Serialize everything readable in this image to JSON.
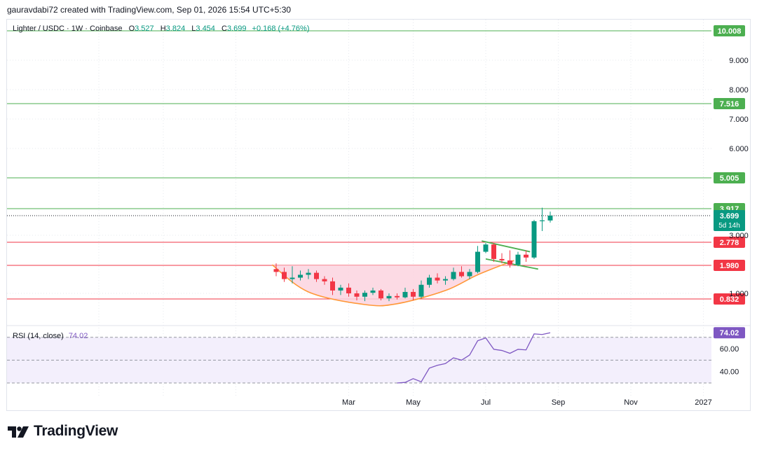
{
  "attribution": "gauravdabi72 created with TradingView.com, Sep 01, 2026 15:54 UTC+5:30",
  "legend": {
    "symbol": "Lighter / USDC · 1W · Coinbase",
    "open_label": "O",
    "open": "3.527",
    "high_label": "H",
    "high": "3.824",
    "low_label": "L",
    "low": "3.454",
    "close_label": "C",
    "close": "3.699",
    "change": "+0.168 (+4.76%)"
  },
  "rsi_legend": {
    "label": "RSI (14, close)",
    "value": "74.02"
  },
  "footer": {
    "brand": "TradingView",
    "logo_icon": "tradingview-logo-icon"
  },
  "colors": {
    "up": "#089981",
    "down": "#f23645",
    "resistance": "#4caf50",
    "support": "#f23645",
    "cup_fill": "#fcd4df",
    "cup_stroke": "#ff9838",
    "rsi": "#7e57c2",
    "rsi_band": "#f3effc"
  },
  "chart_data": [
    {
      "type": "candlestick",
      "title": "Lighter / USDC · 1W · Coinbase",
      "x_ticks": [
        "Mar",
        "May",
        "Jul",
        "Sep",
        "Nov",
        "2027"
      ],
      "x_tick_weeks": [
        9,
        17,
        26,
        35,
        44,
        53
      ],
      "y_ticks": [
        "1.000",
        "3.000",
        "6.000",
        "7.000",
        "8.000",
        "9.000"
      ],
      "y_tick_values": [
        1.0,
        3.0,
        6.0,
        7.0,
        8.0,
        9.0
      ],
      "price_levels": [
        {
          "value": 10.008,
          "label": "10.008",
          "role": "resistance"
        },
        {
          "value": 7.516,
          "label": "7.516",
          "role": "resistance"
        },
        {
          "value": 5.005,
          "label": "5.005",
          "role": "resistance"
        },
        {
          "value": 3.917,
          "label": "3.917",
          "role": "resistance"
        },
        {
          "value": 2.778,
          "label": "2.778",
          "role": "support"
        },
        {
          "value": 1.98,
          "label": "1.980",
          "role": "support"
        },
        {
          "value": 0.832,
          "label": "0.832",
          "role": "support"
        }
      ],
      "last_price": {
        "value": 3.699,
        "label": "3.699",
        "countdown": "5d 14h"
      },
      "candles_week_ohlc": [
        [
          0,
          1.85,
          2.05,
          1.6,
          1.75
        ],
        [
          1,
          1.75,
          1.9,
          1.4,
          1.5
        ],
        [
          2,
          1.5,
          1.95,
          1.35,
          1.55
        ],
        [
          3,
          1.55,
          1.8,
          1.45,
          1.65
        ],
        [
          4,
          1.65,
          1.85,
          1.5,
          1.72
        ],
        [
          5,
          1.72,
          1.8,
          1.4,
          1.5
        ],
        [
          6,
          1.5,
          1.6,
          1.3,
          1.42
        ],
        [
          7,
          1.42,
          1.55,
          0.95,
          1.1
        ],
        [
          8,
          1.1,
          1.3,
          0.95,
          1.2
        ],
        [
          9,
          1.2,
          1.35,
          0.9,
          1.0
        ],
        [
          10,
          1.0,
          1.1,
          0.8,
          0.9
        ],
        [
          11,
          0.9,
          1.1,
          0.78,
          1.02
        ],
        [
          12,
          1.02,
          1.2,
          0.95,
          1.1
        ],
        [
          13,
          1.1,
          1.15,
          0.8,
          0.85
        ],
        [
          14,
          0.85,
          1.0,
          0.78,
          0.92
        ],
        [
          15,
          0.92,
          1.0,
          0.82,
          0.88
        ],
        [
          16,
          0.88,
          1.2,
          0.85,
          1.05
        ],
        [
          17,
          1.05,
          1.15,
          0.8,
          0.9
        ],
        [
          18,
          0.9,
          1.45,
          0.85,
          1.3
        ],
        [
          19,
          1.3,
          1.65,
          1.2,
          1.55
        ],
        [
          20,
          1.55,
          1.7,
          1.35,
          1.45
        ],
        [
          21,
          1.45,
          1.6,
          1.3,
          1.5
        ],
        [
          22,
          1.5,
          1.9,
          1.45,
          1.75
        ],
        [
          23,
          1.75,
          1.95,
          1.55,
          1.6
        ],
        [
          24,
          1.6,
          1.85,
          1.5,
          1.75
        ],
        [
          25,
          1.75,
          2.65,
          1.7,
          2.45
        ],
        [
          26,
          2.45,
          2.75,
          2.4,
          2.7
        ],
        [
          27,
          2.7,
          2.75,
          2.1,
          2.2
        ],
        [
          28,
          2.2,
          2.4,
          2.05,
          2.15
        ],
        [
          29,
          2.15,
          2.5,
          1.9,
          2.0
        ],
        [
          30,
          2.0,
          2.45,
          1.95,
          2.35
        ],
        [
          31,
          2.35,
          2.5,
          2.1,
          2.25
        ],
        [
          32,
          2.25,
          3.55,
          2.2,
          3.5
        ],
        [
          33,
          3.5,
          3.95,
          3.15,
          3.53
        ],
        [
          34,
          3.527,
          3.824,
          3.454,
          3.699
        ]
      ],
      "cup_curve_week_value": [
        [
          -0.5,
          2.0
        ],
        [
          4,
          1.05
        ],
        [
          11,
          0.7
        ],
        [
          15,
          0.72
        ],
        [
          21,
          1.1
        ],
        [
          25,
          1.65
        ],
        [
          29.5,
          2.15
        ]
      ],
      "flag_upper_week_value": [
        [
          25.5,
          2.82
        ],
        [
          31.5,
          2.45
        ]
      ],
      "flag_lower_week_value": [
        [
          26,
          2.2
        ],
        [
          32.5,
          1.85
        ]
      ]
    },
    {
      "type": "line",
      "title": "RSI (14, close)",
      "y_ticks": [
        "40.00",
        "60.00"
      ],
      "y_tick_values": [
        40,
        60
      ],
      "bands": [
        30,
        50,
        70
      ],
      "last_value": {
        "value": 74.02,
        "label": "74.02"
      },
      "series": [
        {
          "values_week_rsi": [
            [
              16,
              30.0
            ],
            [
              17,
              30.5
            ],
            [
              18,
              33.8
            ],
            [
              19,
              31.0
            ],
            [
              20,
              43.0
            ],
            [
              21,
              45.5
            ],
            [
              22,
              47.0
            ],
            [
              23,
              52.0
            ],
            [
              24,
              50.0
            ],
            [
              25,
              54.5
            ],
            [
              26,
              67.0
            ],
            [
              27,
              69.5
            ],
            [
              28,
              59.5
            ],
            [
              29,
              58.5
            ],
            [
              30,
              56.0
            ],
            [
              31,
              59.5
            ],
            [
              32,
              59.0
            ],
            [
              33,
              73.0
            ],
            [
              34,
              72.5
            ],
            [
              35,
              74.02
            ]
          ]
        }
      ]
    }
  ]
}
